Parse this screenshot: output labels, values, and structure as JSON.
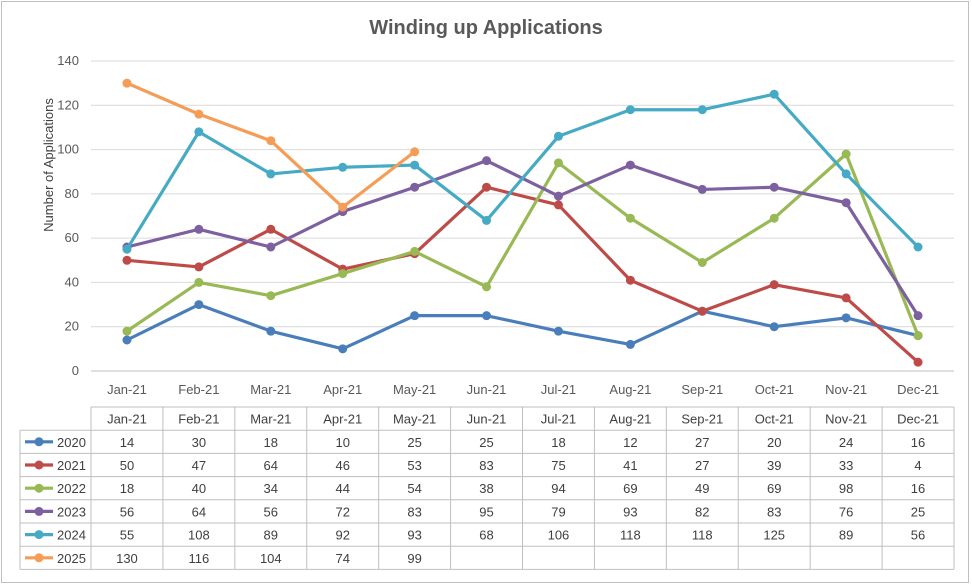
{
  "chart_data": {
    "type": "line",
    "title": "Winding up Applications",
    "ylabel": "Number of Applications",
    "xlabel": "",
    "ylim": [
      0,
      140
    ],
    "yticks": [
      0,
      20,
      40,
      60,
      80,
      100,
      120,
      140
    ],
    "grid": true,
    "legend": "data-table",
    "categories": [
      "Jan-21",
      "Feb-21",
      "Mar-21",
      "Apr-21",
      "May-21",
      "Jun-21",
      "Jul-21",
      "Aug-21",
      "Sep-21",
      "Oct-21",
      "Nov-21",
      "Dec-21"
    ],
    "series": [
      {
        "name": "2020",
        "color": "#4a7ebb",
        "values": [
          14,
          30,
          18,
          10,
          25,
          25,
          18,
          12,
          27,
          20,
          24,
          16
        ]
      },
      {
        "name": "2021",
        "color": "#be4b48",
        "values": [
          50,
          47,
          64,
          46,
          53,
          83,
          75,
          41,
          27,
          39,
          33,
          4
        ]
      },
      {
        "name": "2022",
        "color": "#98b954",
        "values": [
          18,
          40,
          34,
          44,
          54,
          38,
          94,
          69,
          49,
          69,
          98,
          16
        ]
      },
      {
        "name": "2023",
        "color": "#7d60a0",
        "values": [
          56,
          64,
          56,
          72,
          83,
          95,
          79,
          93,
          82,
          83,
          76,
          25
        ]
      },
      {
        "name": "2024",
        "color": "#46aac5",
        "values": [
          55,
          108,
          89,
          92,
          93,
          68,
          106,
          118,
          118,
          125,
          89,
          56
        ]
      },
      {
        "name": "2025",
        "color": "#f59d56",
        "values": [
          130,
          116,
          104,
          74,
          99,
          null,
          null,
          null,
          null,
          null,
          null,
          null
        ]
      }
    ]
  }
}
